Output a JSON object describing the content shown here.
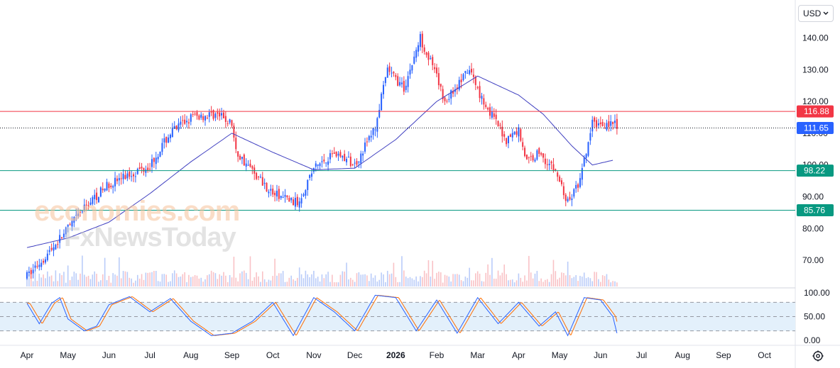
{
  "currency_selector": {
    "label": "USD",
    "chevron_icon": "chevron-down-icon"
  },
  "watermark": {
    "line1": "economies.com",
    "line2": "FxNewsToday"
  },
  "colors": {
    "up": "#2962ff",
    "down": "#f23645",
    "ma": "#3f3fc0",
    "resistance": "#f23645",
    "support": "#089981",
    "last": "#2962ff",
    "stoch_k": "#2962ff",
    "stoch_d": "#ff6d00",
    "stoch_band": "#e3f0fb"
  },
  "chart_data": [
    {
      "type": "candlestick",
      "ylim": [
        62,
        147
      ],
      "y_ticks": [
        "140.00",
        "130.00",
        "120.00",
        "110.00",
        "100.00",
        "90.00",
        "80.00",
        "70.00"
      ],
      "x_ticks": [
        "Apr",
        "May",
        "Jun",
        "Jul",
        "Aug",
        "Sep",
        "Oct",
        "Nov",
        "Dec",
        "2026",
        "Feb",
        "Mar",
        "Apr",
        "May",
        "Jun",
        "Jul",
        "Aug",
        "Sep",
        "Oct"
      ],
      "bold_x_tick": "2026",
      "price_levels": [
        {
          "value": 116.88,
          "label": "116.88",
          "kind": "resistance"
        },
        {
          "value": 98.22,
          "label": "98.22",
          "kind": "support"
        },
        {
          "value": 85.76,
          "label": "85.76",
          "kind": "support"
        }
      ],
      "last_price": {
        "value": 111.65,
        "label": "111.65"
      },
      "price_path": [
        [
          0,
          65
        ],
        [
          0.5,
          72
        ],
        [
          1,
          80
        ],
        [
          1.5,
          88
        ],
        [
          2,
          94
        ],
        [
          3,
          100
        ],
        [
          3.5,
          110
        ],
        [
          4,
          115
        ],
        [
          4.6,
          116
        ],
        [
          5,
          113
        ],
        [
          5.1,
          104
        ],
        [
          6,
          91
        ],
        [
          6.6,
          88
        ],
        [
          7,
          99
        ],
        [
          7.5,
          104
        ],
        [
          8,
          100
        ],
        [
          8.5,
          112
        ],
        [
          8.8,
          130
        ],
        [
          9.2,
          124
        ],
        [
          9.6,
          140
        ],
        [
          9.9,
          131
        ],
        [
          10.2,
          120
        ],
        [
          10.8,
          130
        ],
        [
          11.1,
          121
        ],
        [
          11.7,
          108
        ],
        [
          12,
          111
        ],
        [
          12.2,
          101
        ],
        [
          12.5,
          104
        ],
        [
          12.9,
          98
        ],
        [
          13.2,
          88
        ],
        [
          13.5,
          95
        ],
        [
          13.8,
          113
        ],
        [
          14.3,
          113
        ],
        [
          14.4,
          112
        ]
      ],
      "ma_path": [
        [
          0,
          74
        ],
        [
          1,
          77
        ],
        [
          2,
          82
        ],
        [
          3,
          91
        ],
        [
          4,
          101
        ],
        [
          5,
          110
        ],
        [
          6,
          104
        ],
        [
          7,
          98.5
        ],
        [
          8,
          99
        ],
        [
          9,
          108
        ],
        [
          10,
          120
        ],
        [
          11,
          128
        ],
        [
          12,
          122
        ],
        [
          12.6,
          116
        ],
        [
          13.3,
          106
        ],
        [
          13.8,
          100
        ],
        [
          14.3,
          101.5
        ]
      ],
      "candles_per_month": 20,
      "volume_scale": 100
    },
    {
      "type": "stochastic",
      "ylim": [
        0,
        100
      ],
      "y_ticks": [
        "100.00",
        "50.00",
        "0.00"
      ],
      "bands": [
        20,
        80
      ],
      "k_path": [
        [
          0,
          78
        ],
        [
          0.3,
          35
        ],
        [
          0.6,
          78
        ],
        [
          0.8,
          90
        ],
        [
          1,
          45
        ],
        [
          1.4,
          20
        ],
        [
          1.7,
          30
        ],
        [
          2,
          75
        ],
        [
          2.5,
          92
        ],
        [
          3,
          60
        ],
        [
          3.5,
          88
        ],
        [
          4,
          40
        ],
        [
          4.5,
          10
        ],
        [
          5,
          15
        ],
        [
          5.5,
          40
        ],
        [
          6,
          80
        ],
        [
          6.5,
          10
        ],
        [
          7,
          90
        ],
        [
          7.5,
          60
        ],
        [
          8,
          20
        ],
        [
          8.5,
          95
        ],
        [
          9,
          90
        ],
        [
          9.5,
          20
        ],
        [
          10,
          85
        ],
        [
          10.5,
          15
        ],
        [
          11,
          90
        ],
        [
          11.5,
          35
        ],
        [
          12,
          80
        ],
        [
          12.5,
          30
        ],
        [
          12.9,
          60
        ],
        [
          13.2,
          10
        ],
        [
          13.6,
          90
        ],
        [
          14,
          85
        ],
        [
          14.3,
          50
        ],
        [
          14.4,
          15
        ]
      ]
    }
  ]
}
